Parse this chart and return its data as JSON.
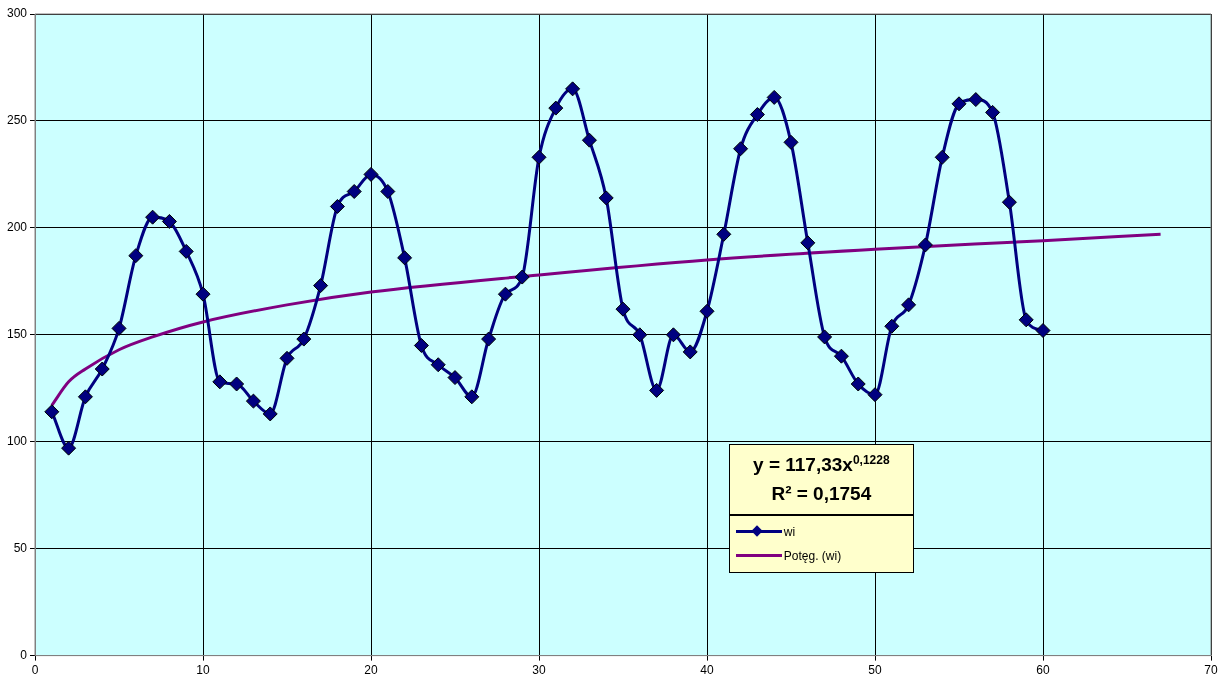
{
  "chart_data": {
    "type": "line",
    "x": [
      1,
      2,
      3,
      4,
      5,
      6,
      7,
      8,
      9,
      10,
      11,
      12,
      13,
      14,
      15,
      16,
      17,
      18,
      19,
      20,
      21,
      22,
      23,
      24,
      25,
      26,
      27,
      28,
      29,
      30,
      31,
      32,
      33,
      34,
      35,
      36,
      37,
      38,
      39,
      40,
      41,
      42,
      43,
      44,
      45,
      46,
      47,
      48,
      49,
      50,
      51,
      52,
      53,
      54,
      55,
      56,
      57,
      58,
      59,
      60
    ],
    "series": [
      {
        "name": "wi",
        "color": "#000080",
        "marker": "diamond",
        "values": [
          114,
          97,
          121,
          134,
          153,
          187,
          205,
          203,
          189,
          169,
          128,
          127,
          119,
          113,
          139,
          148,
          173,
          210,
          217,
          225,
          217,
          186,
          145,
          136,
          130,
          121,
          148,
          169,
          177,
          233,
          256,
          265,
          241,
          214,
          162,
          150,
          124,
          150,
          142,
          161,
          197,
          237,
          253,
          261,
          240,
          193,
          149,
          140,
          127,
          122,
          154,
          164,
          192,
          233,
          258,
          260,
          254,
          212,
          157,
          152
        ]
      },
      {
        "name": "Potęg. (wi)",
        "color": "#800080",
        "marker": "none",
        "x": [
          1,
          2,
          3,
          5,
          7,
          10,
          15,
          20,
          30,
          40,
          50,
          60,
          67
        ],
        "values": [
          117,
          128,
          134,
          143,
          149,
          156,
          164,
          170,
          178,
          185,
          190,
          194,
          197
        ]
      }
    ],
    "xlim": [
      0,
      70
    ],
    "xticks": [
      0,
      10,
      20,
      30,
      40,
      50,
      60,
      70
    ],
    "ylim": [
      0,
      300
    ],
    "yticks": [
      0,
      50,
      100,
      150,
      200,
      250,
      300
    ],
    "grid": true,
    "legend": "bottom right",
    "line_style": "solid",
    "annotations": [
      "y = 117,33x$^{0,1228}$",
      "R² = 0,1754"
    ]
  }
}
